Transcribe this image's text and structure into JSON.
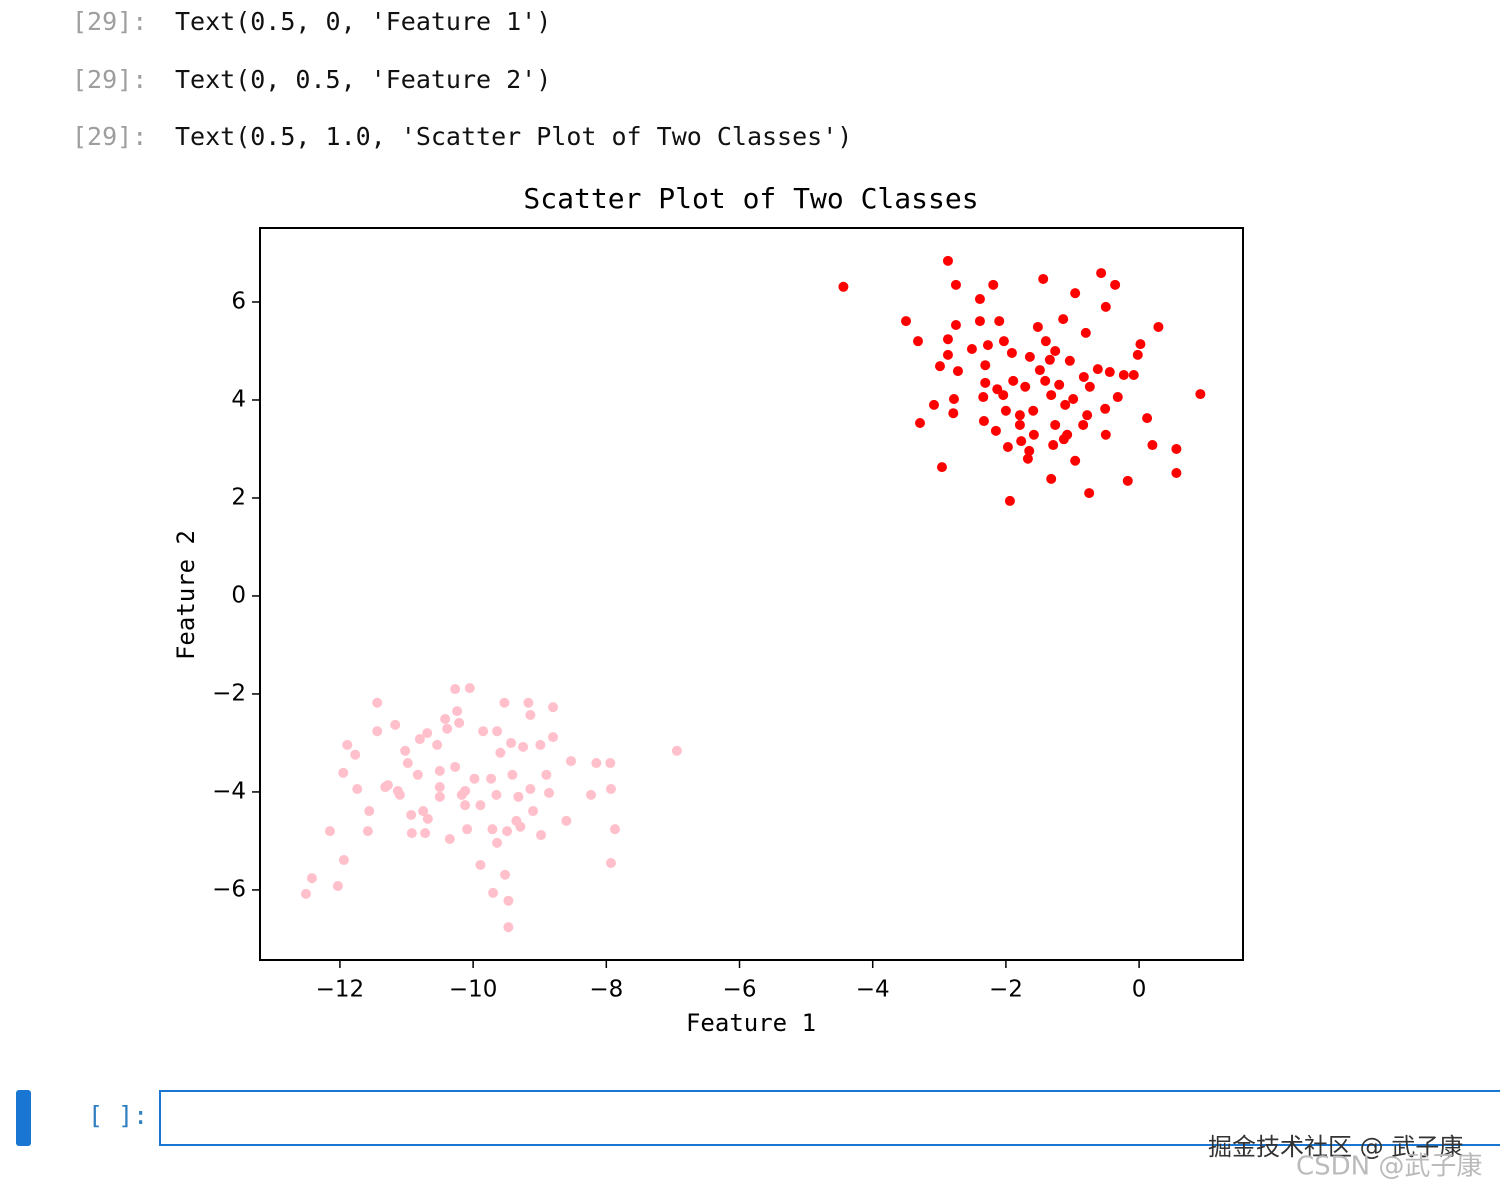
{
  "outputs": [
    {
      "prompt": "[29]:",
      "text": "Text(0.5, 0, 'Feature 1')"
    },
    {
      "prompt": "[29]:",
      "text": "Text(0, 0.5, 'Feature 2')"
    },
    {
      "prompt": "[29]:",
      "text": "Text(0.5, 1.0, 'Scatter Plot of Two Classes')"
    }
  ],
  "input_prompt": "[ ]:",
  "watermarks": [
    "掘金技术社区 @ 武子康",
    "CSDN @武子康"
  ],
  "chart_data": {
    "type": "scatter",
    "title": "Scatter Plot of Two Classes",
    "xlabel": "Feature 1",
    "ylabel": "Feature 2",
    "xlim": [
      -13.2,
      1.56
    ],
    "ylim": [
      -7.43,
      7.51
    ],
    "xticks": [
      {
        "value": -12,
        "label": "−12"
      },
      {
        "value": -10,
        "label": "−10"
      },
      {
        "value": -8,
        "label": "−8"
      },
      {
        "value": -6,
        "label": "−6"
      },
      {
        "value": -4,
        "label": "−4"
      },
      {
        "value": -2,
        "label": "−2"
      },
      0
    ],
    "yticks": [
      {
        "value": -6,
        "label": "−6"
      },
      {
        "value": -4,
        "label": "−4"
      },
      {
        "value": -2,
        "label": "−2"
      },
      0,
      2,
      4,
      6
    ],
    "grid": false,
    "series": [
      {
        "color": "red",
        "x": [
          -4.44,
          -2.87,
          -2.75,
          -2.19,
          -1.44,
          -0.57,
          -0.36,
          -2.39,
          -0.96,
          -0.5,
          -3.5,
          -2.75,
          -2.39,
          -2.1,
          -1.14,
          0.29,
          -3.32,
          -2.87,
          -2.51,
          -2.27,
          -2.03,
          -1.52,
          -1.4,
          -0.8,
          0.02,
          -2.99,
          -2.87,
          -2.72,
          -2.31,
          -1.91,
          -1.64,
          -1.26,
          -1.04,
          -0.83,
          -0.62,
          -0.44,
          -0.23,
          -0.02,
          -0.08,
          -2.31,
          -2.13,
          -1.89,
          -1.71,
          -1.41,
          -1.2,
          -0.99,
          -0.74,
          -0.32,
          0.92,
          -3.08,
          -2.78,
          -2.34,
          -2.0,
          -1.79,
          -1.59,
          -1.32,
          -1.11,
          -0.78,
          -0.51,
          -3.29,
          -2.79,
          -2.33,
          -2.15,
          -1.79,
          -1.58,
          -1.26,
          -1.08,
          -0.84,
          -0.5,
          0.12,
          -1.97,
          -1.77,
          -1.65,
          -1.29,
          -1.13,
          0.2,
          0.56,
          -2.96,
          -1.67,
          -0.96,
          0.56,
          -1.32,
          -0.17,
          -0.75,
          -1.94,
          -2.04,
          -1.49,
          -1.34
        ],
        "y": [
          6.31,
          6.84,
          6.35,
          6.35,
          6.47,
          6.59,
          6.35,
          6.06,
          6.18,
          5.9,
          5.61,
          5.53,
          5.61,
          5.61,
          5.65,
          5.49,
          5.2,
          5.24,
          5.04,
          5.12,
          5.2,
          5.49,
          5.2,
          5.37,
          5.14,
          4.69,
          4.92,
          4.59,
          4.71,
          4.96,
          4.88,
          5.0,
          4.8,
          4.47,
          4.63,
          4.57,
          4.51,
          4.92,
          4.51,
          4.35,
          4.22,
          4.39,
          4.27,
          4.39,
          4.31,
          4.02,
          4.27,
          4.06,
          4.12,
          3.9,
          4.02,
          4.06,
          3.78,
          3.69,
          3.78,
          4.1,
          3.9,
          3.69,
          3.82,
          3.53,
          3.73,
          3.57,
          3.37,
          3.49,
          3.29,
          3.49,
          3.29,
          3.49,
          3.29,
          3.63,
          3.04,
          3.16,
          2.96,
          3.08,
          3.2,
          3.08,
          3.0,
          2.63,
          2.8,
          2.76,
          2.51,
          2.39,
          2.35,
          2.1,
          1.94,
          4.1,
          4.61,
          4.82
        ]
      },
      {
        "color": "pink",
        "x": [
          -11.44,
          -10.27,
          -10.05,
          -9.53,
          -9.17,
          -8.8,
          -11.17,
          -11.44,
          -10.42,
          -10.24,
          -9.14,
          -11.89,
          -11.77,
          -11.02,
          -10.8,
          -10.69,
          -10.54,
          -10.39,
          -10.21,
          -9.85,
          -9.64,
          -9.43,
          -9.25,
          -8.99,
          -8.8,
          -11.95,
          -11.74,
          -11.32,
          -11.13,
          -10.98,
          -10.83,
          -10.5,
          -10.27,
          -9.98,
          -9.73,
          -9.59,
          -9.41,
          -9.14,
          -8.9,
          -8.53,
          -8.15,
          -7.94,
          -6.94,
          -11.56,
          -11.1,
          -10.93,
          -10.75,
          -10.5,
          -10.17,
          -10.12,
          -9.89,
          -9.65,
          -9.32,
          -9.1,
          -8.86,
          -8.6,
          -8.23,
          -7.93,
          -12.15,
          -11.58,
          -10.92,
          -10.72,
          -10.35,
          -10.09,
          -9.71,
          -9.49,
          -9.35,
          -8.98,
          -7.87,
          -11.94,
          -12.42,
          -12.03,
          -12.51,
          -9.89,
          -9.7,
          -9.52,
          -9.47,
          -9.47,
          -7.93,
          -9.64,
          -10.68,
          -10.12,
          -10.5,
          -9.29,
          -11.28
        ],
        "y": [
          -2.18,
          -1.9,
          -1.88,
          -2.18,
          -2.18,
          -2.27,
          -2.63,
          -2.76,
          -2.51,
          -2.35,
          -2.43,
          -3.04,
          -3.24,
          -3.16,
          -2.92,
          -2.8,
          -3.04,
          -2.71,
          -2.59,
          -2.76,
          -2.76,
          -3.0,
          -3.08,
          -3.04,
          -2.88,
          -3.61,
          -3.94,
          -3.9,
          -3.98,
          -3.41,
          -3.65,
          -3.57,
          -3.49,
          -3.73,
          -3.73,
          -3.2,
          -3.65,
          -3.94,
          -3.65,
          -3.37,
          -3.41,
          -3.41,
          -3.16,
          -4.39,
          -4.06,
          -4.47,
          -4.39,
          -4.1,
          -4.06,
          -4.27,
          -4.27,
          -4.06,
          -4.1,
          -4.39,
          -4.02,
          -4.59,
          -4.06,
          -3.94,
          -4.8,
          -4.8,
          -4.84,
          -4.84,
          -4.96,
          -4.76,
          -4.76,
          -4.8,
          -4.59,
          -4.88,
          -4.76,
          -5.39,
          -5.76,
          -5.92,
          -6.08,
          -5.49,
          -6.06,
          -5.69,
          -6.22,
          -6.76,
          -5.45,
          -5.04,
          -4.55,
          -3.98,
          -3.9,
          -4.71,
          -3.86
        ]
      }
    ]
  }
}
